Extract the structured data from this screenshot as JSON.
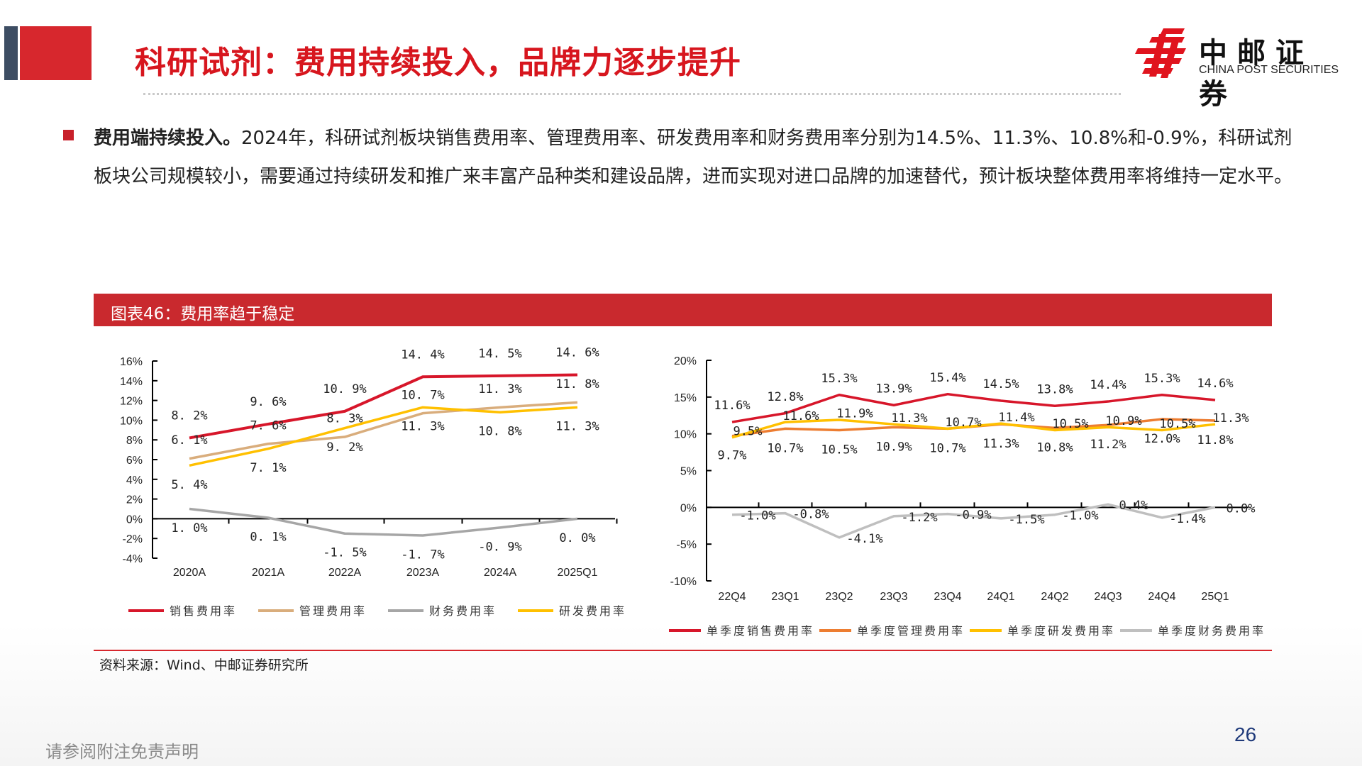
{
  "header": {
    "title": "科研试剂：费用持续投入，品牌力逐步提升",
    "logo_cn": "中邮证券",
    "logo_en": "CHINA POST SECURITIES"
  },
  "body": {
    "bold_lead": "费用端持续投入。",
    "text": "2024年，科研试剂板块销售费用率、管理费用率、研发费用率和财务费用率分别为14.5%、11.3%、10.8%和-0.9%，科研试剂板块公司规模较小，需要通过持续研发和推广来丰富产品种类和建设品牌，进而实现对进口品牌的加速替代，预计板块整体费用率将维持一定水平。"
  },
  "figure": {
    "caption": "图表46：费用率趋于稳定",
    "source": "资料来源：Wind、中邮证券研究所"
  },
  "footer": {
    "disclaimer": "请参阅附注免责声明",
    "page_number": "26"
  },
  "chart_data": [
    {
      "type": "line",
      "categories": [
        "2020A",
        "2021A",
        "2022A",
        "2023A",
        "2024A",
        "2025Q1"
      ],
      "ylim": [
        -4,
        16
      ],
      "yticks": [
        "-4%",
        "-2%",
        "0%",
        "2%",
        "4%",
        "6%",
        "8%",
        "10%",
        "12%",
        "14%",
        "16%"
      ],
      "legend": "bottom",
      "grid": false,
      "series": [
        {
          "name": "销售费用率",
          "color": "#d7162a",
          "values": [
            8.2,
            9.6,
            10.9,
            14.4,
            14.5,
            14.6
          ]
        },
        {
          "name": "管理费用率",
          "color": "#d9ad7c",
          "values": [
            6.1,
            7.6,
            8.3,
            10.7,
            11.3,
            11.8
          ]
        },
        {
          "name": "财务费用率",
          "color": "#a6a6a6",
          "values": [
            1.0,
            0.1,
            -1.5,
            -1.7,
            -0.9,
            0.0
          ]
        },
        {
          "name": "研发费用率",
          "color": "#ffc000",
          "values": [
            5.4,
            7.1,
            9.2,
            11.3,
            10.8,
            11.3
          ]
        }
      ]
    },
    {
      "type": "line",
      "categories": [
        "22Q4",
        "23Q1",
        "23Q2",
        "23Q3",
        "23Q4",
        "24Q1",
        "24Q2",
        "24Q3",
        "24Q4",
        "25Q1"
      ],
      "ylim": [
        -10,
        20
      ],
      "yticks": [
        "-10%",
        "-5%",
        "0%",
        "5%",
        "10%",
        "15%",
        "20%"
      ],
      "legend": "bottom",
      "grid": false,
      "series": [
        {
          "name": "单季度销售费用率",
          "color": "#d7162a",
          "values": [
            11.6,
            12.8,
            15.3,
            13.9,
            15.4,
            14.5,
            13.8,
            14.4,
            15.3,
            14.6
          ]
        },
        {
          "name": "单季度管理费用率",
          "color": "#ed7d31",
          "values": [
            9.7,
            10.7,
            10.5,
            10.9,
            10.7,
            11.3,
            10.8,
            11.2,
            12.0,
            11.8
          ]
        },
        {
          "name": "单季度研发费用率",
          "color": "#ffc000",
          "values": [
            9.5,
            11.6,
            11.9,
            11.3,
            10.7,
            11.4,
            10.5,
            10.9,
            10.5,
            11.3
          ]
        },
        {
          "name": "单季度财务费用率",
          "color": "#bfbfbf",
          "values": [
            -1.0,
            -0.8,
            -4.1,
            -1.2,
            -0.9,
            -1.5,
            -1.0,
            0.4,
            -1.4,
            0.0
          ]
        }
      ]
    }
  ]
}
